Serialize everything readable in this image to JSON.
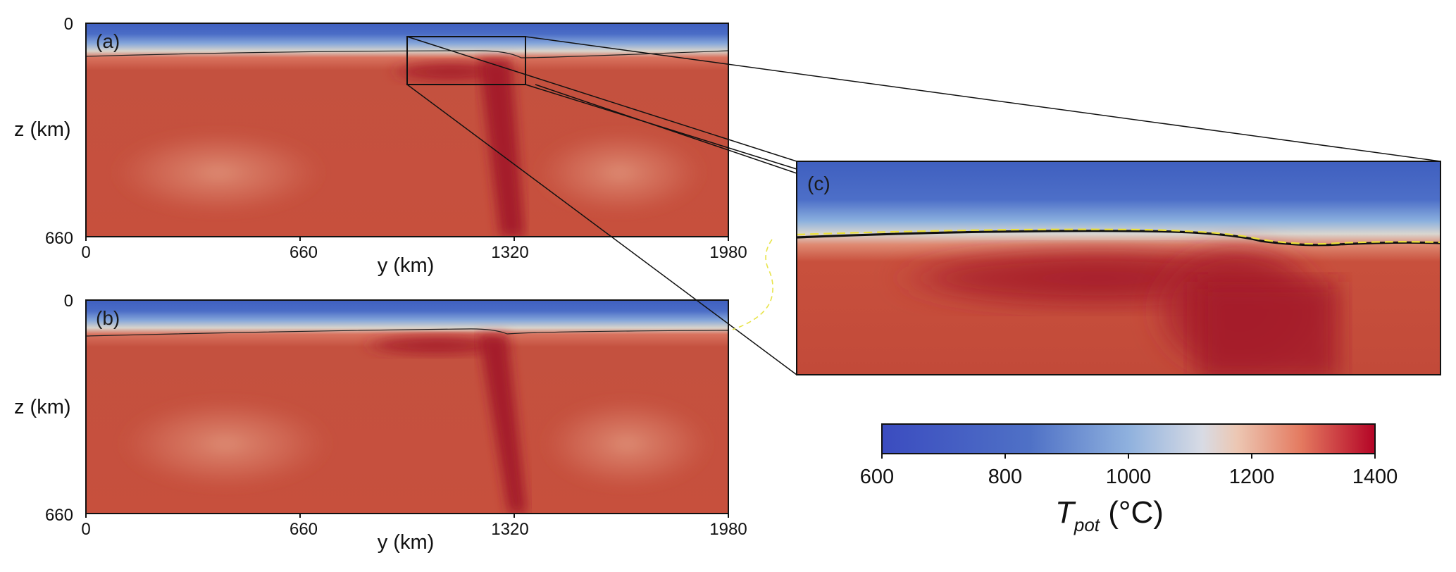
{
  "panels": {
    "a": {
      "label": "(a)",
      "y_ticks": [
        "0",
        "660"
      ],
      "x_ticks": [
        "0",
        "660",
        "1320",
        "1980"
      ],
      "ylabel": "z (km)",
      "xlabel": "y (km)"
    },
    "b": {
      "label": "(b)",
      "y_ticks": [
        "0",
        "660"
      ],
      "x_ticks": [
        "0",
        "660",
        "1320",
        "1980"
      ],
      "ylabel": "z (km)",
      "xlabel": "y (km)"
    },
    "c": {
      "label": "(c)"
    }
  },
  "colorbar": {
    "ticks": [
      "600",
      "800",
      "1000",
      "1200",
      "1400"
    ],
    "label_main": "T",
    "label_sub": "pot",
    "label_unit": " (°C)",
    "range": [
      600,
      1400
    ],
    "colors": [
      "#3b4cc0",
      "#6a8ad0",
      "#b8cde8",
      "#f1d5c6",
      "#e3735a",
      "#b40426"
    ]
  },
  "chart_data": {
    "type": "heatmap",
    "variable": "T_pot",
    "unit": "°C",
    "x_range_km": [
      0,
      1980
    ],
    "z_range_km": [
      0,
      660
    ],
    "color_range": [
      600,
      1400
    ],
    "panels": [
      "(a)",
      "(b)",
      "(c)"
    ]
  }
}
